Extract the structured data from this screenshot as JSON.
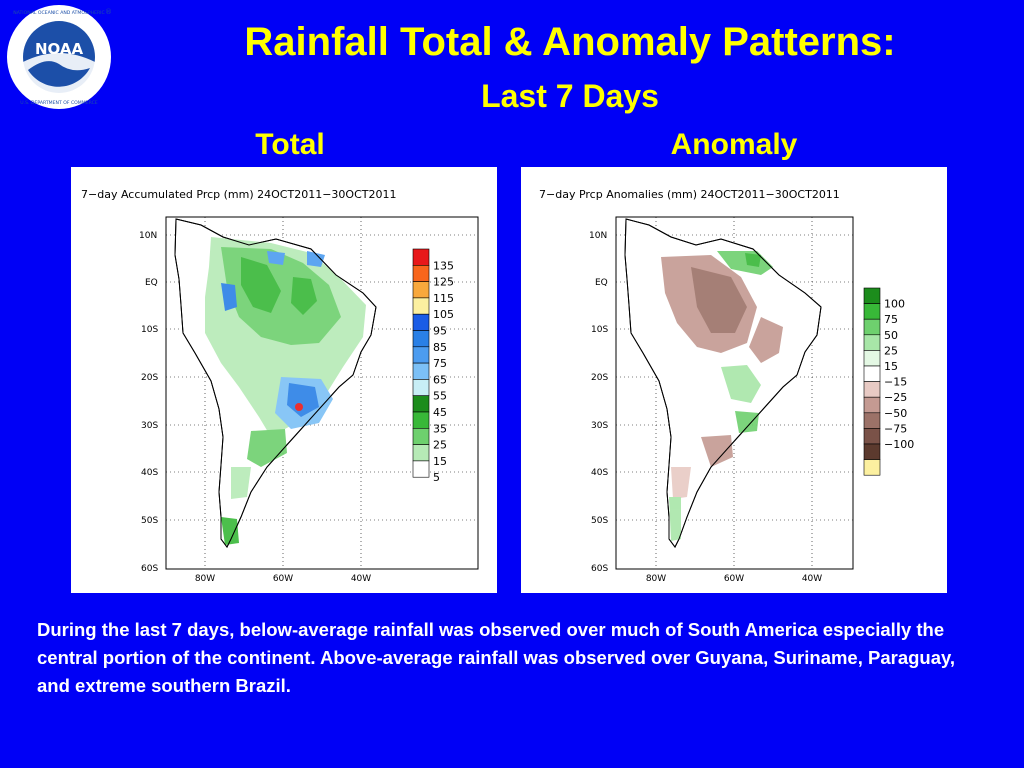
{
  "header": {
    "logo_text": "NOAA",
    "logo_ring_text": "NATIONAL OCEANIC AND ATMOSPHERIC ADMINISTRATION · U.S. DEPARTMENT OF COMMERCE",
    "title": "Rainfall Total & Anomaly Patterns:",
    "subtitle": "Last 7 Days"
  },
  "panels": {
    "total": {
      "label": "Total",
      "map_title": "7−day Accumulated Prcp (mm) 24OCT2011−30OCT2011",
      "legend": [
        "135",
        "125",
        "115",
        "105",
        "95",
        "85",
        "75",
        "65",
        "55",
        "45",
        "35",
        "25",
        "15",
        "5"
      ],
      "legend_colors": [
        "#e8181a",
        "#f8661c",
        "#f8a83c",
        "#fcf0a0",
        "#1a5ce6",
        "#2a80e6",
        "#4c9cf0",
        "#7cc0f6",
        "#c8eef6",
        "#1c8c1c",
        "#38b838",
        "#6ed06e",
        "#b6eab6",
        "#ffffff"
      ]
    },
    "anomaly": {
      "label": "Anomaly",
      "map_title": "7−day Prcp Anomalies (mm) 24OCT2011−30OCT2011",
      "legend": [
        "100",
        "75",
        "50",
        "25",
        "15",
        "−15",
        "−25",
        "−50",
        "−75",
        "−100"
      ],
      "legend_colors": [
        "#1c8c1c",
        "#38b838",
        "#6ed06e",
        "#a8e6a8",
        "#e4f8e4",
        "#ffffff",
        "#e8cac4",
        "#c49a92",
        "#9c7268",
        "#7a5248",
        "#5c3a2e",
        "#fcf0a0"
      ]
    },
    "lat_labels": [
      "10N",
      "EQ",
      "10S",
      "20S",
      "30S",
      "40S",
      "50S",
      "60S"
    ],
    "lon_labels": [
      "80W",
      "60W",
      "40W"
    ]
  },
  "caption": "During the last 7 days, below-average rainfall was observed over much of South America especially the central portion of the continent. Above-average rainfall was observed over Guyana, Suriname, Paraguay, and extreme southern Brazil."
}
